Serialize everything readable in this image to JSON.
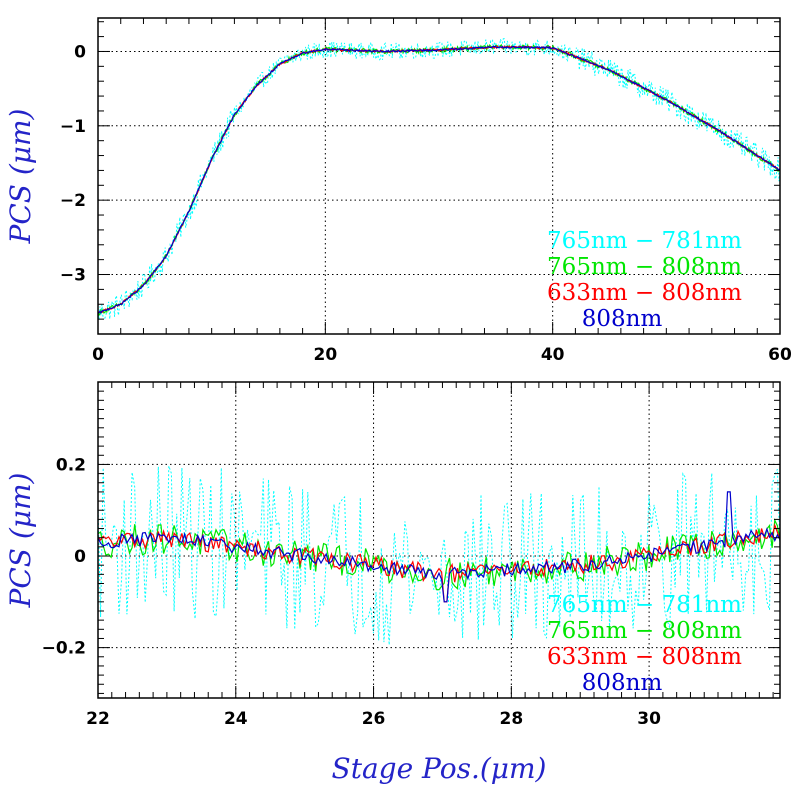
{
  "chart_data": [
    {
      "type": "line",
      "ylabel": "PCS (μm)",
      "xlabel": "",
      "xlim": [
        0,
        60
      ],
      "ylim": [
        -3.8,
        0.45
      ],
      "xticks": [
        0,
        20,
        40,
        60
      ],
      "xtick_labels": [
        "0",
        "20",
        "40",
        "60"
      ],
      "yticks": [
        -3,
        -2,
        -1,
        0
      ],
      "ytick_labels": [
        "−3",
        "−2",
        "−1",
        "0"
      ],
      "grid": true,
      "legend_placement": "bottom-right",
      "profile": {
        "x": [
          0,
          2,
          4,
          6,
          8,
          10,
          12,
          14,
          16,
          18,
          20,
          25,
          30,
          35,
          40,
          45,
          50,
          55,
          60
        ],
        "y": [
          -3.52,
          -3.4,
          -3.15,
          -2.75,
          -2.15,
          -1.45,
          -0.85,
          -0.45,
          -0.17,
          -0.02,
          0.03,
          0.0,
          0.02,
          0.06,
          0.05,
          -0.25,
          -0.65,
          -1.1,
          -1.6
        ]
      },
      "series": [
        {
          "name": "765nm − 781nm",
          "color": "#00ffff",
          "style": "dotted",
          "noise_amplitude": 0.16
        },
        {
          "name": "765nm − 808nm",
          "color": "#00e600",
          "style": "solid",
          "noise_amplitude": 0.03
        },
        {
          "name": "633nm − 808nm",
          "color": "#ff0000",
          "style": "solid",
          "noise_amplitude": 0.015
        },
        {
          "name": "808nm",
          "color": "#0000cc",
          "style": "solid",
          "noise_amplitude": 0.012
        }
      ]
    },
    {
      "type": "line",
      "ylabel": "PCS (μm)",
      "xlabel": "Stage Pos.(μm)",
      "xlim": [
        22,
        31.9
      ],
      "ylim": [
        -0.31,
        0.38
      ],
      "xticks": [
        22,
        24,
        26,
        28,
        30
      ],
      "xtick_labels": [
        "22",
        "24",
        "26",
        "28",
        "30"
      ],
      "yticks": [
        -0.2,
        0,
        0.2
      ],
      "ytick_labels": [
        "−0.2",
        "0",
        "0.2"
      ],
      "grid": true,
      "legend_placement": "bottom-right",
      "profile": {
        "x": [
          22,
          23,
          24,
          25,
          26,
          27,
          28,
          29,
          30,
          31,
          31.9
        ],
        "y": [
          0.03,
          0.04,
          0.02,
          0.0,
          -0.02,
          -0.04,
          -0.03,
          -0.02,
          0.0,
          0.03,
          0.05
        ]
      },
      "spikes": [
        {
          "x": 27.05,
          "y": -0.1
        },
        {
          "x": 31.15,
          "y": 0.14
        }
      ],
      "series": [
        {
          "name": "765nm − 781nm",
          "color": "#00ffff",
          "style": "dotted",
          "noise_amplitude": 0.17
        },
        {
          "name": "765nm − 808nm",
          "color": "#00e600",
          "style": "solid",
          "noise_amplitude": 0.035
        },
        {
          "name": "633nm − 808nm",
          "color": "#ff0000",
          "style": "solid",
          "noise_amplitude": 0.02
        },
        {
          "name": "808nm",
          "color": "#0000cc",
          "style": "solid",
          "noise_amplitude": 0.015
        }
      ]
    }
  ]
}
